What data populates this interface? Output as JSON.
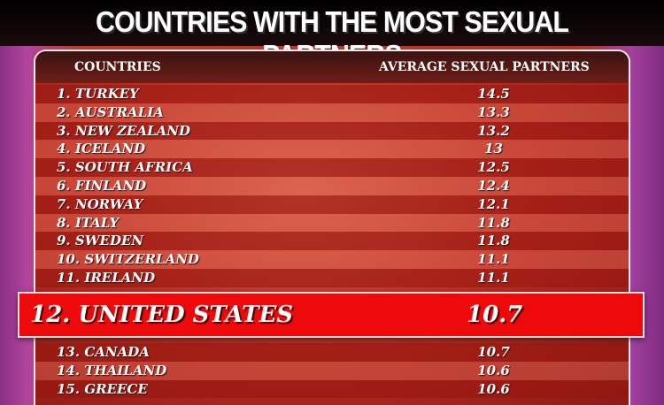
{
  "title": "COUNTRIES WITH THE MOST SEXUAL PARTNERS",
  "colors": {
    "highlight": "#ee0a0a",
    "header": "#3a1210",
    "stripe_dark": "#b0231a",
    "stripe_light": "#d8584a"
  },
  "chart_data": {
    "type": "table",
    "columns": [
      "COUNTRIES",
      "AVERAGE SEXUAL PARTNERS"
    ],
    "rows": [
      {
        "rank": "1.",
        "country": "TURKEY",
        "value": "14.5"
      },
      {
        "rank": "2.",
        "country": "AUSTRALIA",
        "value": "13.3"
      },
      {
        "rank": "3.",
        "country": "NEW ZEALAND",
        "value": "13.2"
      },
      {
        "rank": "4.",
        "country": "ICELAND",
        "value": "13"
      },
      {
        "rank": "5.",
        "country": "SOUTH AFRICA",
        "value": "12.5"
      },
      {
        "rank": "6.",
        "country": "FINLAND",
        "value": "12.4"
      },
      {
        "rank": "7.",
        "country": "NORWAY",
        "value": "12.1"
      },
      {
        "rank": "8.",
        "country": "ITALY",
        "value": "11.8"
      },
      {
        "rank": "9.",
        "country": "SWEDEN",
        "value": "11.8"
      },
      {
        "rank": "10.",
        "country": "SWITZERLAND",
        "value": "11.1"
      },
      {
        "rank": "11.",
        "country": "IRELAND",
        "value": "11.1"
      },
      {
        "rank": "12.",
        "country": "UNITED STATES",
        "value": "10.7",
        "highlighted": true
      },
      {
        "rank": "13.",
        "country": "CANADA",
        "value": "10.7"
      },
      {
        "rank": "14.",
        "country": "THAILAND",
        "value": "10.6"
      },
      {
        "rank": "15.",
        "country": "GREECE",
        "value": "10.6"
      }
    ]
  }
}
